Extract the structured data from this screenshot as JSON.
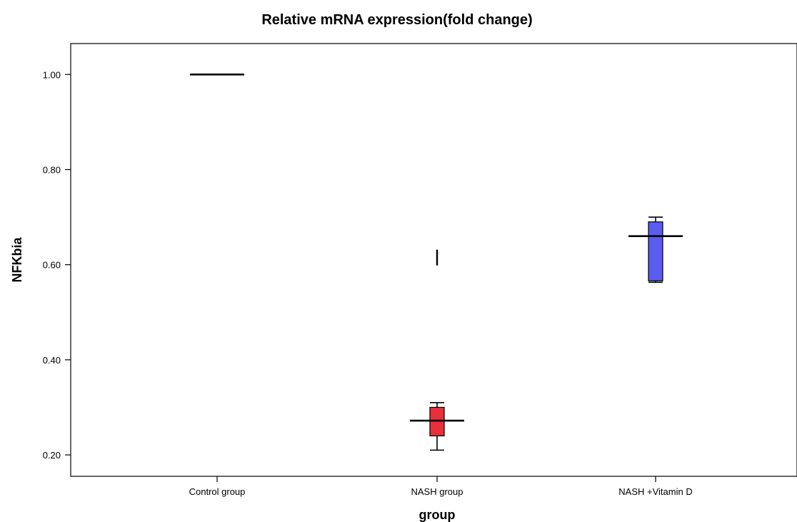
{
  "chart_data": {
    "type": "boxplot",
    "title": "Relative mRNA expression(fold change)",
    "xlabel": "group",
    "ylabel": "NFKbia",
    "ylim": [
      0.155,
      1.065
    ],
    "yticks": [
      0.2,
      0.4,
      0.6,
      0.8,
      1.0
    ],
    "ytick_labels": [
      "0.20",
      "0.40",
      "0.60",
      "0.80",
      "1.00"
    ],
    "categories": [
      "Control group",
      "NASH group",
      "NASH +Vitamin D"
    ],
    "boxes": [
      {
        "category": "Control group",
        "whisker_low": 1.0,
        "q1": 1.0,
        "median": 1.0,
        "q3": 1.0,
        "whisker_high": 1.0,
        "color": "#000000",
        "outliers": []
      },
      {
        "category": "NASH group",
        "whisker_low": 0.21,
        "q1": 0.24,
        "median": 0.272,
        "q3": 0.3,
        "whisker_high": 0.31,
        "color": "#e8303a",
        "outliers": [
          0.615
        ]
      },
      {
        "category": "NASH +Vitamin D",
        "whisker_low": 0.563,
        "q1": 0.566,
        "median": 0.66,
        "q3": 0.69,
        "whisker_high": 0.7,
        "color": "#5a5cf0",
        "outliers": []
      }
    ],
    "grid": false,
    "legend": "none"
  }
}
